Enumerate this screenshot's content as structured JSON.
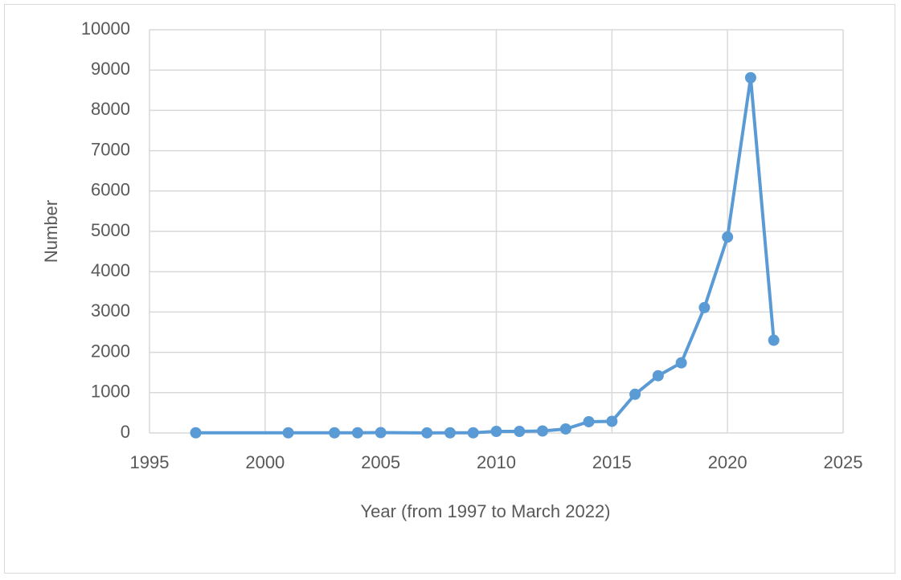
{
  "chart_data": {
    "type": "line",
    "x_label": "Year (from 1997 to March 2022)",
    "y_label": "Number",
    "series": [
      {
        "name": "Number",
        "color": "#5b9bd5",
        "x": [
          1997,
          2001,
          2003,
          2004,
          2005,
          2007,
          2008,
          2009,
          2010,
          2011,
          2012,
          2013,
          2014,
          2015,
          2016,
          2017,
          2018,
          2019,
          2020,
          2021,
          2022
        ],
        "values": [
          5,
          5,
          5,
          5,
          10,
          3,
          5,
          5,
          40,
          40,
          50,
          100,
          280,
          290,
          960,
          1420,
          1740,
          3110,
          4860,
          8810,
          2300
        ]
      }
    ],
    "xlim": [
      1995,
      2025
    ],
    "xticks": [
      1995,
      2000,
      2005,
      2010,
      2015,
      2020,
      2025
    ],
    "ylim": [
      0,
      10000
    ],
    "yticks": [
      0,
      1000,
      2000,
      3000,
      4000,
      5000,
      6000,
      7000,
      8000,
      9000,
      10000
    ],
    "grid": true
  }
}
